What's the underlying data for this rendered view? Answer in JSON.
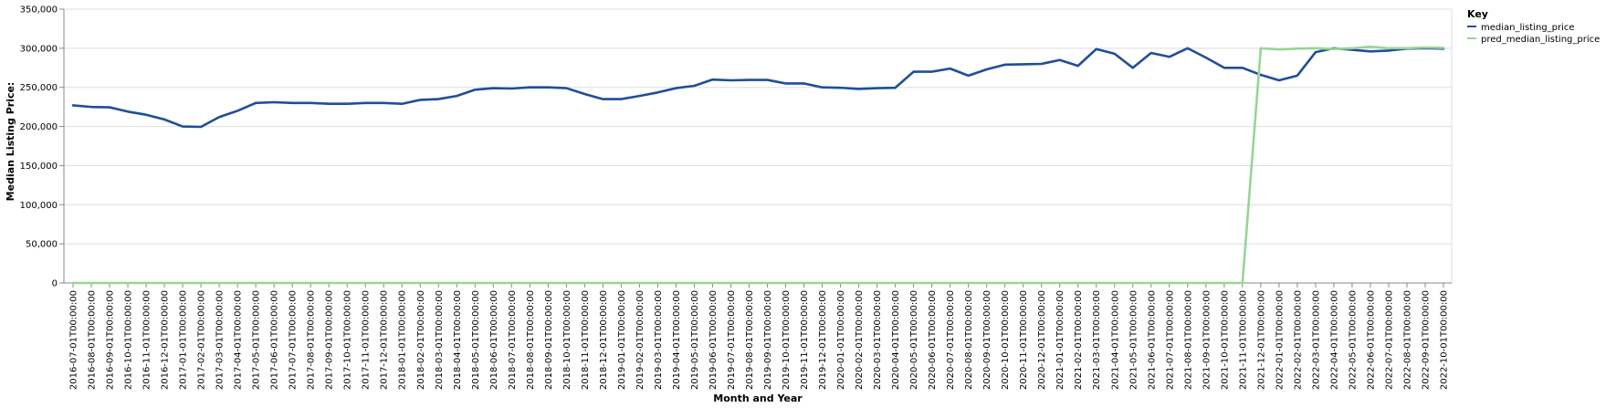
{
  "chart_data": {
    "type": "line",
    "xlabel": "Month and Year",
    "ylabel": "Median Listing Price:",
    "ylim": [
      0,
      350000
    ],
    "y_ticks": [
      "0",
      "50,000",
      "100,000",
      "150,000",
      "200,000",
      "250,000",
      "300,000",
      "350,000"
    ],
    "grid": true,
    "legend": {
      "title": "Key",
      "placement": "top-right"
    },
    "x": [
      "2016-07-01T00:00:00",
      "2016-08-01T00:00:00",
      "2016-09-01T00:00:00",
      "2016-10-01T00:00:00",
      "2016-11-01T00:00:00",
      "2016-12-01T00:00:00",
      "2017-01-01T00:00:00",
      "2017-02-01T00:00:00",
      "2017-03-01T00:00:00",
      "2017-04-01T00:00:00",
      "2017-05-01T00:00:00",
      "2017-06-01T00:00:00",
      "2017-07-01T00:00:00",
      "2017-08-01T00:00:00",
      "2017-09-01T00:00:00",
      "2017-10-01T00:00:00",
      "2017-11-01T00:00:00",
      "2017-12-01T00:00:00",
      "2018-01-01T00:00:00",
      "2018-02-01T00:00:00",
      "2018-03-01T00:00:00",
      "2018-04-01T00:00:00",
      "2018-05-01T00:00:00",
      "2018-06-01T00:00:00",
      "2018-07-01T00:00:00",
      "2018-08-01T00:00:00",
      "2018-09-01T00:00:00",
      "2018-10-01T00:00:00",
      "2018-11-01T00:00:00",
      "2018-12-01T00:00:00",
      "2019-01-01T00:00:00",
      "2019-02-01T00:00:00",
      "2019-03-01T00:00:00",
      "2019-04-01T00:00:00",
      "2019-05-01T00:00:00",
      "2019-06-01T00:00:00",
      "2019-07-01T00:00:00",
      "2019-08-01T00:00:00",
      "2019-09-01T00:00:00",
      "2019-10-01T00:00:00",
      "2019-11-01T00:00:00",
      "2019-12-01T00:00:00",
      "2020-01-01T00:00:00",
      "2020-02-01T00:00:00",
      "2020-03-01T00:00:00",
      "2020-04-01T00:00:00",
      "2020-05-01T00:00:00",
      "2020-06-01T00:00:00",
      "2020-07-01T00:00:00",
      "2020-08-01T00:00:00",
      "2020-09-01T00:00:00",
      "2020-10-01T00:00:00",
      "2020-11-01T00:00:00",
      "2020-12-01T00:00:00",
      "2021-01-01T00:00:00",
      "2021-02-01T00:00:00",
      "2021-03-01T00:00:00",
      "2021-04-01T00:00:00",
      "2021-05-01T00:00:00",
      "2021-06-01T00:00:00",
      "2021-07-01T00:00:00",
      "2021-08-01T00:00:00",
      "2021-09-01T00:00:00",
      "2021-10-01T00:00:00",
      "2021-11-01T00:00:00",
      "2021-12-01T00:00:00",
      "2022-01-01T00:00:00",
      "2022-02-01T00:00:00",
      "2022-03-01T00:00:00",
      "2022-04-01T00:00:00",
      "2022-05-01T00:00:00",
      "2022-06-01T00:00:00",
      "2022-07-01T00:00:00",
      "2022-08-01T00:00:00",
      "2022-09-01T00:00:00",
      "2022-10-01T00:00:00"
    ],
    "series": [
      {
        "name": "median_listing_price",
        "color": "#1f4e9a",
        "values": [
          227000,
          225000,
          224500,
          219000,
          215000,
          209000,
          200000,
          199500,
          212000,
          220000,
          230000,
          231000,
          230000,
          230000,
          229000,
          229000,
          230000,
          230000,
          229000,
          234000,
          235000,
          239000,
          247000,
          249000,
          248500,
          250000,
          250000,
          249000,
          241500,
          235000,
          235000,
          239000,
          243500,
          249000,
          252000,
          260000,
          259000,
          259500,
          259500,
          255000,
          255000,
          250000,
          249500,
          248000,
          249000,
          249500,
          270000,
          270000,
          274000,
          265000,
          273000,
          279000,
          279500,
          280000,
          285000,
          277500,
          299000,
          293000,
          275000,
          294000,
          289000,
          300000,
          288000,
          275000,
          275000,
          266000,
          259000,
          265000,
          295000,
          300000,
          298000,
          296000,
          297000,
          299500,
          300000,
          299500
        ]
      },
      {
        "name": "pred_median_listing_price",
        "color": "#98d594",
        "values": [
          0,
          0,
          0,
          0,
          0,
          0,
          0,
          0,
          0,
          0,
          0,
          0,
          0,
          0,
          0,
          0,
          0,
          0,
          0,
          0,
          0,
          0,
          0,
          0,
          0,
          0,
          0,
          0,
          0,
          0,
          0,
          0,
          0,
          0,
          0,
          0,
          0,
          0,
          0,
          0,
          0,
          0,
          0,
          0,
          0,
          0,
          0,
          0,
          0,
          0,
          0,
          0,
          0,
          0,
          0,
          0,
          0,
          0,
          0,
          0,
          0,
          0,
          0,
          0,
          0,
          300000,
          298500,
          299500,
          300000,
          299000,
          300000,
          302000,
          300000,
          300000,
          301000,
          300500
        ]
      }
    ]
  }
}
